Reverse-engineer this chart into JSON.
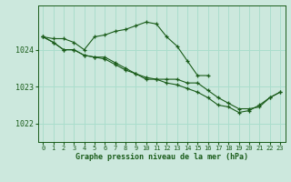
{
  "title": "Graphe pression niveau de la mer (hPa)",
  "background_color": "#cce8dd",
  "grid_color": "#aaddcc",
  "line_color": "#1a5c1a",
  "marker_color": "#1a5c1a",
  "xlim": [
    -0.5,
    23.5
  ],
  "ylim": [
    1021.5,
    1025.2
  ],
  "yticks": [
    1022,
    1023,
    1024
  ],
  "xticks": [
    0,
    1,
    2,
    3,
    4,
    5,
    6,
    7,
    8,
    9,
    10,
    11,
    12,
    13,
    14,
    15,
    16,
    17,
    18,
    19,
    20,
    21,
    22,
    23
  ],
  "series": [
    {
      "x": [
        0,
        1,
        2,
        3,
        4,
        5,
        6,
        7,
        8,
        9,
        10,
        11,
        12,
        13,
        14,
        15,
        16,
        17,
        18,
        19,
        20,
        21,
        22,
        23
      ],
      "y": [
        1024.35,
        1024.3,
        1024.3,
        1024.2,
        1024.0,
        1024.35,
        1024.4,
        1024.5,
        1024.55,
        1024.65,
        1024.75,
        1024.7,
        1024.35,
        1024.1,
        1023.7,
        1023.3,
        1023.3,
        null,
        null,
        null,
        null,
        null,
        null,
        null
      ]
    },
    {
      "x": [
        0,
        1,
        2,
        3,
        4,
        5,
        6,
        7,
        8,
        9,
        10,
        11,
        12,
        13,
        14,
        15,
        16,
        17,
        18,
        19,
        20,
        21,
        22,
        23
      ],
      "y": [
        1024.35,
        1024.2,
        1024.0,
        1024.0,
        1023.85,
        1023.8,
        1023.8,
        1023.65,
        1023.5,
        1023.35,
        1023.2,
        1023.2,
        1023.2,
        1023.2,
        1023.1,
        1023.1,
        1022.9,
        1022.7,
        1022.55,
        1022.4,
        1022.4,
        1022.45,
        1022.7,
        1022.85
      ]
    },
    {
      "x": [
        0,
        1,
        2,
        3,
        4,
        5,
        6,
        7,
        8,
        9,
        10,
        11,
        12,
        13,
        14,
        15,
        16,
        17,
        18,
        19,
        20,
        21,
        22,
        23
      ],
      "y": [
        1024.35,
        1024.2,
        1024.0,
        1024.0,
        1023.85,
        1023.8,
        1023.75,
        1023.6,
        1023.45,
        1023.35,
        1023.25,
        1023.2,
        1023.1,
        1023.05,
        1022.95,
        1022.85,
        1022.7,
        1022.5,
        1022.45,
        1022.3,
        1022.35,
        1022.5,
        1022.7,
        1022.85
      ]
    }
  ]
}
